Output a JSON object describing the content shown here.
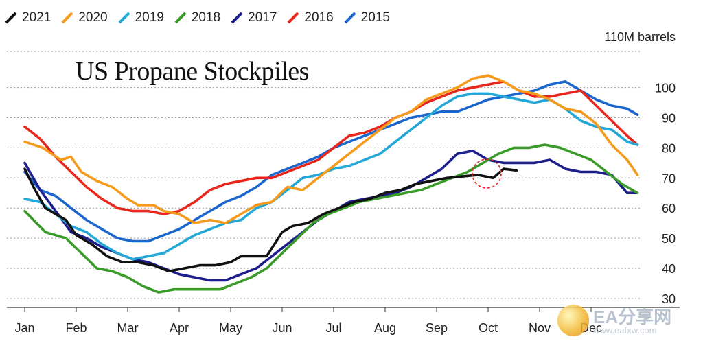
{
  "chart_data": {
    "type": "line",
    "title": "US Propane Stockpiles",
    "unit_label": "110M barrels",
    "ylim": [
      27,
      112
    ],
    "yticks": [
      30,
      40,
      50,
      60,
      70,
      80,
      90,
      100
    ],
    "xlim": [
      0,
      11.5
    ],
    "months": [
      "Jan",
      "Feb",
      "Mar",
      "Apr",
      "May",
      "Jun",
      "Jul",
      "Aug",
      "Sep",
      "Oct",
      "Nov",
      "Dec"
    ],
    "legend_position": "top-left",
    "grid": true,
    "series": [
      {
        "name": "2021",
        "color": "#111111",
        "points": [
          [
            0,
            73
          ],
          [
            0.2,
            66
          ],
          [
            0.4,
            60
          ],
          [
            0.6,
            58
          ],
          [
            0.8,
            56
          ],
          [
            1,
            51
          ],
          [
            1.3,
            48
          ],
          [
            1.6,
            44
          ],
          [
            1.9,
            42
          ],
          [
            2.2,
            42
          ],
          [
            2.5,
            41
          ],
          [
            2.8,
            39
          ],
          [
            3.1,
            40
          ],
          [
            3.4,
            41
          ],
          [
            3.7,
            41
          ],
          [
            4,
            42
          ],
          [
            4.2,
            44
          ],
          [
            4.45,
            44
          ],
          [
            4.7,
            44
          ],
          [
            5,
            52
          ],
          [
            5.2,
            54
          ],
          [
            5.5,
            55
          ],
          [
            5.8,
            58
          ],
          [
            6.1,
            60
          ],
          [
            6.4,
            62
          ],
          [
            6.7,
            63
          ],
          [
            7,
            65
          ],
          [
            7.3,
            66
          ],
          [
            7.6,
            68
          ],
          [
            7.9,
            69
          ],
          [
            8.2,
            70
          ],
          [
            8.5,
            70.5
          ],
          [
            8.8,
            71
          ],
          [
            9.1,
            70
          ],
          [
            9.3,
            73
          ],
          [
            9.55,
            72.5
          ]
        ]
      },
      {
        "name": "2020",
        "color": "#f59a1b",
        "points": [
          [
            0,
            82
          ],
          [
            0.35,
            80
          ],
          [
            0.7,
            76
          ],
          [
            0.9,
            77
          ],
          [
            1.1,
            72
          ],
          [
            1.4,
            69
          ],
          [
            1.7,
            67
          ],
          [
            2,
            63
          ],
          [
            2.2,
            61
          ],
          [
            2.5,
            61
          ],
          [
            2.7,
            59
          ],
          [
            3,
            58
          ],
          [
            3.3,
            55
          ],
          [
            3.6,
            56
          ],
          [
            3.9,
            55
          ],
          [
            4.2,
            58
          ],
          [
            4.5,
            61
          ],
          [
            4.8,
            62
          ],
          [
            5.1,
            67
          ],
          [
            5.4,
            66
          ],
          [
            5.7,
            70
          ],
          [
            6,
            74
          ],
          [
            6.3,
            78
          ],
          [
            6.6,
            82
          ],
          [
            6.9,
            86
          ],
          [
            7.2,
            90
          ],
          [
            7.5,
            92
          ],
          [
            7.8,
            96
          ],
          [
            8.1,
            98
          ],
          [
            8.4,
            100
          ],
          [
            8.7,
            103
          ],
          [
            9,
            104
          ],
          [
            9.3,
            102
          ],
          [
            9.6,
            99
          ],
          [
            9.9,
            98
          ],
          [
            10.2,
            96
          ],
          [
            10.5,
            93
          ],
          [
            10.8,
            92
          ],
          [
            11.1,
            88
          ],
          [
            11.4,
            81
          ],
          [
            11.7,
            76
          ],
          [
            11.9,
            71
          ]
        ]
      },
      {
        "name": "2019",
        "color": "#22a7d6",
        "points": [
          [
            0,
            63
          ],
          [
            0.3,
            62
          ],
          [
            0.6,
            58
          ],
          [
            0.9,
            54
          ],
          [
            1.2,
            52
          ],
          [
            1.5,
            48
          ],
          [
            1.8,
            45
          ],
          [
            2.1,
            43
          ],
          [
            2.4,
            44
          ],
          [
            2.7,
            45
          ],
          [
            3,
            48
          ],
          [
            3.3,
            51
          ],
          [
            3.6,
            53
          ],
          [
            3.9,
            55
          ],
          [
            4.2,
            56
          ],
          [
            4.5,
            60
          ],
          [
            4.8,
            62
          ],
          [
            5.1,
            66
          ],
          [
            5.4,
            70
          ],
          [
            5.7,
            71
          ],
          [
            6,
            73
          ],
          [
            6.3,
            74
          ],
          [
            6.6,
            76
          ],
          [
            6.9,
            78
          ],
          [
            7.2,
            82
          ],
          [
            7.5,
            86
          ],
          [
            7.8,
            90
          ],
          [
            8.1,
            94
          ],
          [
            8.4,
            97
          ],
          [
            8.7,
            98
          ],
          [
            9,
            98
          ],
          [
            9.3,
            97
          ],
          [
            9.6,
            96
          ],
          [
            9.9,
            95
          ],
          [
            10.2,
            96
          ],
          [
            10.5,
            93
          ],
          [
            10.8,
            89
          ],
          [
            11.1,
            87
          ],
          [
            11.4,
            86
          ],
          [
            11.7,
            82
          ],
          [
            11.9,
            81
          ]
        ]
      },
      {
        "name": "2018",
        "color": "#3a9b2a",
        "points": [
          [
            0,
            59
          ],
          [
            0.4,
            52
          ],
          [
            0.8,
            50
          ],
          [
            1.1,
            45
          ],
          [
            1.4,
            40
          ],
          [
            1.7,
            39
          ],
          [
            2,
            37
          ],
          [
            2.3,
            34
          ],
          [
            2.6,
            32
          ],
          [
            2.9,
            33
          ],
          [
            3.2,
            33
          ],
          [
            3.5,
            33
          ],
          [
            3.8,
            33
          ],
          [
            4.1,
            35
          ],
          [
            4.4,
            37
          ],
          [
            4.7,
            40
          ],
          [
            5,
            45
          ],
          [
            5.3,
            50
          ],
          [
            5.6,
            55
          ],
          [
            5.9,
            58
          ],
          [
            6.2,
            60
          ],
          [
            6.5,
            62
          ],
          [
            6.8,
            63
          ],
          [
            7.1,
            64
          ],
          [
            7.4,
            65
          ],
          [
            7.7,
            66
          ],
          [
            8,
            68
          ],
          [
            8.3,
            70
          ],
          [
            8.6,
            72
          ],
          [
            8.9,
            75
          ],
          [
            9.2,
            78
          ],
          [
            9.5,
            80
          ],
          [
            9.8,
            80
          ],
          [
            10.1,
            81
          ],
          [
            10.4,
            80
          ],
          [
            10.7,
            78
          ],
          [
            11,
            76
          ],
          [
            11.3,
            72
          ],
          [
            11.6,
            68
          ],
          [
            11.9,
            65
          ]
        ]
      },
      {
        "name": "2017",
        "color": "#1c1f8c",
        "points": [
          [
            0,
            75
          ],
          [
            0.3,
            66
          ],
          [
            0.6,
            59
          ],
          [
            0.9,
            52
          ],
          [
            1.2,
            50
          ],
          [
            1.5,
            47
          ],
          [
            1.8,
            45
          ],
          [
            2.1,
            43
          ],
          [
            2.4,
            42
          ],
          [
            2.7,
            40
          ],
          [
            3,
            38
          ],
          [
            3.3,
            37
          ],
          [
            3.6,
            36
          ],
          [
            3.9,
            36
          ],
          [
            4.2,
            38
          ],
          [
            4.5,
            40
          ],
          [
            4.8,
            44
          ],
          [
            5.1,
            48
          ],
          [
            5.4,
            52
          ],
          [
            5.7,
            56
          ],
          [
            6,
            59
          ],
          [
            6.3,
            62
          ],
          [
            6.6,
            63
          ],
          [
            6.9,
            64
          ],
          [
            7.2,
            65
          ],
          [
            7.5,
            67
          ],
          [
            7.8,
            70
          ],
          [
            8.1,
            73
          ],
          [
            8.4,
            78
          ],
          [
            8.7,
            79
          ],
          [
            9,
            76
          ],
          [
            9.3,
            75
          ],
          [
            9.6,
            75
          ],
          [
            9.9,
            75
          ],
          [
            10.2,
            76
          ],
          [
            10.5,
            73
          ],
          [
            10.8,
            72
          ],
          [
            11.1,
            72
          ],
          [
            11.4,
            71
          ],
          [
            11.7,
            65
          ],
          [
            11.9,
            65
          ]
        ]
      },
      {
        "name": "2016",
        "color": "#e8261c",
        "points": [
          [
            0,
            87
          ],
          [
            0.3,
            83
          ],
          [
            0.6,
            77
          ],
          [
            0.9,
            72
          ],
          [
            1.2,
            67
          ],
          [
            1.5,
            63
          ],
          [
            1.8,
            60
          ],
          [
            2.1,
            59
          ],
          [
            2.4,
            59
          ],
          [
            2.7,
            58
          ],
          [
            3,
            59
          ],
          [
            3.3,
            62
          ],
          [
            3.6,
            66
          ],
          [
            3.9,
            68
          ],
          [
            4.2,
            69
          ],
          [
            4.5,
            70
          ],
          [
            4.8,
            70
          ],
          [
            5.1,
            72
          ],
          [
            5.4,
            74
          ],
          [
            5.7,
            76
          ],
          [
            6,
            80
          ],
          [
            6.3,
            84
          ],
          [
            6.6,
            85
          ],
          [
            6.9,
            87
          ],
          [
            7.2,
            90
          ],
          [
            7.5,
            92
          ],
          [
            7.8,
            95
          ],
          [
            8.1,
            97
          ],
          [
            8.4,
            99
          ],
          [
            8.7,
            100
          ],
          [
            9,
            101
          ],
          [
            9.3,
            102
          ],
          [
            9.6,
            99
          ],
          [
            9.9,
            97
          ],
          [
            10.2,
            97
          ],
          [
            10.5,
            98
          ],
          [
            10.8,
            99
          ],
          [
            11.1,
            94
          ],
          [
            11.4,
            89
          ],
          [
            11.7,
            84
          ],
          [
            11.9,
            81
          ]
        ]
      },
      {
        "name": "2015",
        "color": "#1a66cc",
        "points": [
          [
            0,
            72
          ],
          [
            0.3,
            66
          ],
          [
            0.6,
            64
          ],
          [
            0.9,
            60
          ],
          [
            1.2,
            56
          ],
          [
            1.5,
            53
          ],
          [
            1.8,
            50
          ],
          [
            2.1,
            49
          ],
          [
            2.4,
            49
          ],
          [
            2.7,
            51
          ],
          [
            3,
            53
          ],
          [
            3.3,
            56
          ],
          [
            3.6,
            59
          ],
          [
            3.9,
            62
          ],
          [
            4.2,
            64
          ],
          [
            4.5,
            67
          ],
          [
            4.8,
            71
          ],
          [
            5.1,
            73
          ],
          [
            5.4,
            75
          ],
          [
            5.7,
            77
          ],
          [
            6,
            80
          ],
          [
            6.3,
            82
          ],
          [
            6.6,
            84
          ],
          [
            6.9,
            86
          ],
          [
            7.2,
            88
          ],
          [
            7.5,
            90
          ],
          [
            7.8,
            91
          ],
          [
            8.1,
            92
          ],
          [
            8.4,
            92
          ],
          [
            8.7,
            94
          ],
          [
            9,
            96
          ],
          [
            9.3,
            97
          ],
          [
            9.6,
            98
          ],
          [
            9.9,
            99
          ],
          [
            10.2,
            101
          ],
          [
            10.5,
            102
          ],
          [
            10.8,
            99
          ],
          [
            11.1,
            96
          ],
          [
            11.4,
            94
          ],
          [
            11.7,
            93
          ],
          [
            11.9,
            91
          ]
        ]
      }
    ]
  }
}
